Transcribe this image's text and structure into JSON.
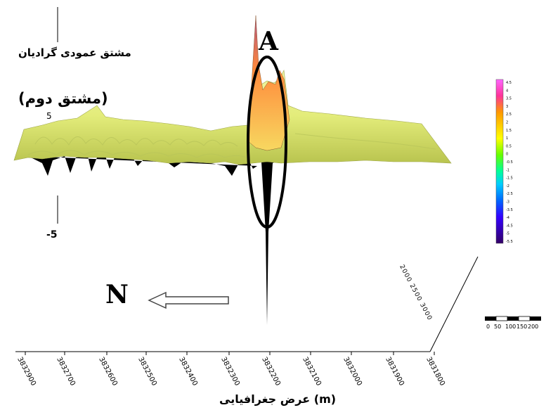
{
  "chart_data": {
    "type": "surface-3d",
    "title": "مشتق عمودی گرادیان",
    "subtitle": "(مشتق دوم)",
    "xlabel": "عرض جغرافیایی (m)",
    "x_ticks": [
      "3832900",
      "3832700",
      "3832600",
      "3832500",
      "3832400",
      "3832300",
      "3832200",
      "3832100",
      "3832000",
      "3831900",
      "3831800"
    ],
    "z_ticks": [
      "5",
      "-5"
    ],
    "y_axis_label_text": "2000 2500 3000",
    "anomaly_label": "A",
    "direction_label": "N",
    "colorbar": {
      "ticks": [
        "4.5",
        "4",
        "3.5",
        "3",
        "2.5",
        "2",
        "1.5",
        "1",
        "0.5",
        "0",
        "-0.5",
        "-1",
        "-1.5",
        "-2",
        "-2.5",
        "-3",
        "-3.5",
        "-4",
        "-4.5",
        "-5",
        "-5.5"
      ],
      "colors": [
        "#ff66ff",
        "#ff3399",
        "#ff3300",
        "#ff9900",
        "#ffcc00",
        "#ffff00",
        "#ccff00",
        "#66ff00",
        "#00ff33",
        "#00ffcc",
        "#00ccff",
        "#0066ff",
        "#3300ff",
        "#6600cc",
        "#330066"
      ]
    },
    "scale_bar": {
      "labels": [
        "0",
        "50",
        "100",
        "150",
        "200"
      ]
    },
    "colors": {
      "surface": "#e6ef7f",
      "surface_shadow": "#b9c55a",
      "peak": "#ff9a3c",
      "trough": "#000000"
    }
  }
}
